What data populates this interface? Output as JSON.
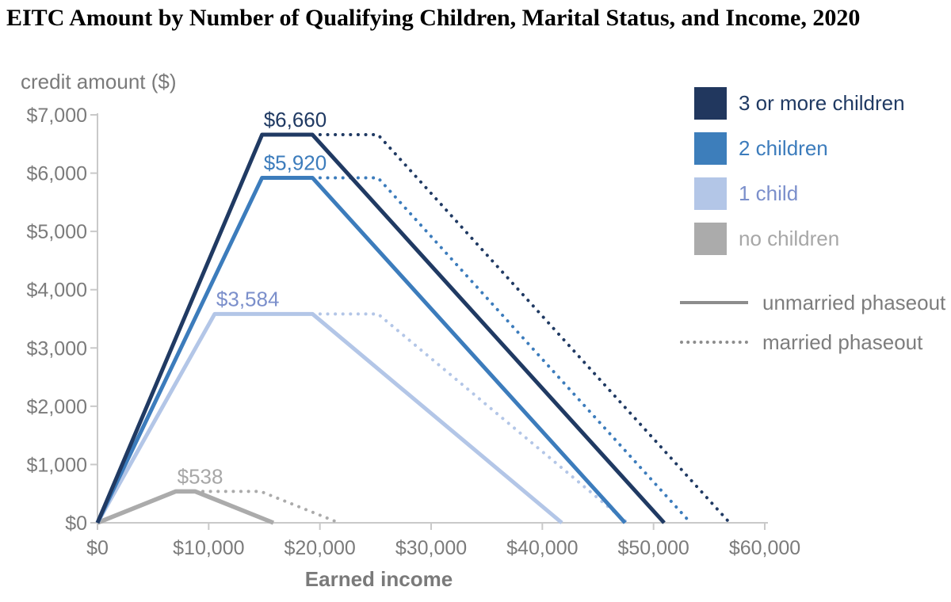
{
  "title": "EITC Amount by Number of Qualifying Children, Marital Status, and Income, 2020",
  "colors": {
    "axis": "#c9c9c9",
    "tick_text": "#7b7b7b",
    "axis_title_text": "#7a7a7a",
    "legend_line": "#8c8c8c",
    "phaseout_text": "#7d7d7d"
  },
  "legend": {
    "children": [
      {
        "label": "3 or more children",
        "color": "#21375e",
        "text_color": "#203a63"
      },
      {
        "label": "2 children",
        "color": "#3d7ebb",
        "text_color": "#3c7cbc"
      },
      {
        "label": "1 child",
        "color": "#b3c6e7",
        "text_color": "#7b8fcb"
      },
      {
        "label": "no children",
        "color": "#ababab",
        "text_color": "#a7a7a7"
      }
    ],
    "phaseout": [
      {
        "label": "unmarried phaseout",
        "style": "solid"
      },
      {
        "label": "married phaseout",
        "style": "dotted"
      }
    ]
  },
  "chart_data": {
    "type": "line",
    "title": "EITC Amount by Number of Qualifying Children, Marital Status, and Income, 2020",
    "xlabel": "Earned income",
    "ylabel": "credit amount ($)",
    "xlim": [
      0,
      60000
    ],
    "ylim": [
      0,
      7000
    ],
    "grid": false,
    "legend_position": "right",
    "x_ticks": [
      0,
      10000,
      20000,
      30000,
      40000,
      50000,
      60000
    ],
    "x_tick_labels": [
      "$0",
      "$10,000",
      "$20,000",
      "$30,000",
      "$40,000",
      "$50,000",
      "$60,000"
    ],
    "y_ticks": [
      0,
      1000,
      2000,
      3000,
      4000,
      5000,
      6000,
      7000
    ],
    "y_tick_labels": [
      "$0",
      "$1,000",
      "$2,000",
      "$3,000",
      "$4,000",
      "$5,000",
      "$6,000",
      "$7,000"
    ],
    "series": [
      {
        "name": "3 or more children",
        "slug": "three-or-more-children",
        "color": "#203a63",
        "label_color": "#203a63",
        "line_width": 5,
        "peak_label": "$6,660",
        "peak_at": [
          14800,
          6660
        ],
        "unmarried": [
          [
            0,
            0
          ],
          [
            14800,
            6660
          ],
          [
            19330,
            6660
          ],
          [
            50954,
            0
          ]
        ],
        "married": [
          [
            19330,
            6660
          ],
          [
            25220,
            6660
          ],
          [
            56844,
            0
          ]
        ]
      },
      {
        "name": "2 children",
        "slug": "two-children",
        "color": "#3c7cbc",
        "label_color": "#3c7cbc",
        "line_width": 5,
        "peak_label": "$5,920",
        "peak_at": [
          14800,
          5920
        ],
        "unmarried": [
          [
            0,
            0
          ],
          [
            14800,
            5920
          ],
          [
            19330,
            5920
          ],
          [
            47440,
            0
          ]
        ],
        "married": [
          [
            19330,
            5920
          ],
          [
            25220,
            5920
          ],
          [
            53330,
            0
          ]
        ]
      },
      {
        "name": "1 child",
        "slug": "one-child",
        "color": "#b3c6e7",
        "label_color": "#7b8fcb",
        "line_width": 5,
        "peak_label": "$3,584",
        "peak_at": [
          10540,
          3584
        ],
        "unmarried": [
          [
            0,
            0
          ],
          [
            10540,
            3584
          ],
          [
            19330,
            3584
          ],
          [
            41756,
            0
          ]
        ],
        "married": [
          [
            19330,
            3584
          ],
          [
            25220,
            3584
          ],
          [
            47646,
            0
          ]
        ]
      },
      {
        "name": "no children",
        "slug": "no-children",
        "color": "#ababab",
        "label_color": "#a7a7a7",
        "line_width": 5.5,
        "peak_label": "$538",
        "peak_at": [
          7030,
          538
        ],
        "unmarried": [
          [
            0,
            0
          ],
          [
            7030,
            538
          ],
          [
            8790,
            538
          ],
          [
            15820,
            0
          ]
        ],
        "married": [
          [
            8790,
            538
          ],
          [
            14680,
            538
          ],
          [
            21710,
            0
          ]
        ]
      }
    ]
  }
}
